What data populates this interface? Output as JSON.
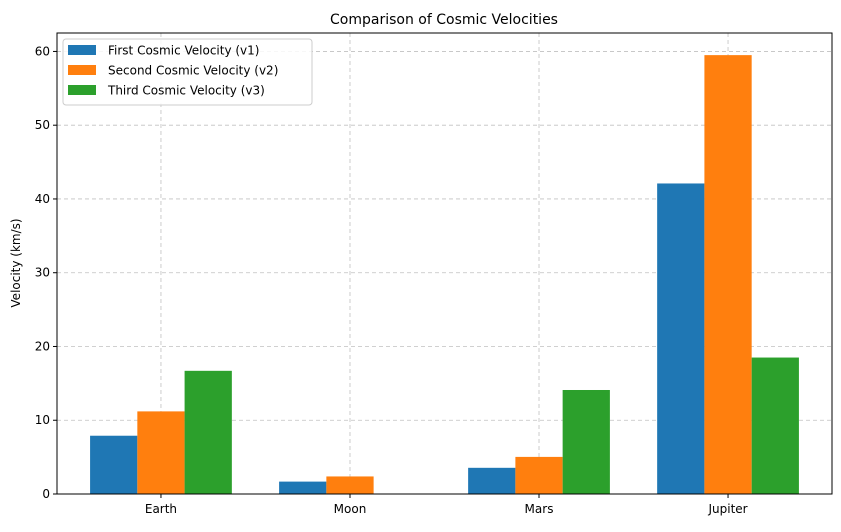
{
  "chart_data": {
    "type": "bar",
    "title": "Comparison of Cosmic Velocities",
    "xlabel": "",
    "ylabel": "Velocity (km/s)",
    "categories": [
      "Earth",
      "Moon",
      "Mars",
      "Jupiter"
    ],
    "ylim": [
      0,
      62.5
    ],
    "yticks": [
      0,
      10,
      20,
      30,
      40,
      50,
      60
    ],
    "grid": true,
    "legend_position": "upper-left",
    "series": [
      {
        "name": "First Cosmic Velocity (v1)",
        "color": "#1f77b4",
        "values": [
          7.9,
          1.68,
          3.55,
          42.1
        ]
      },
      {
        "name": "Second Cosmic Velocity (v2)",
        "color": "#ff7f0e",
        "values": [
          11.2,
          2.38,
          5.03,
          59.5
        ]
      },
      {
        "name": "Third Cosmic Velocity (v3)",
        "color": "#2ca02c",
        "values": [
          16.7,
          0,
          14.1,
          18.5
        ]
      }
    ]
  }
}
